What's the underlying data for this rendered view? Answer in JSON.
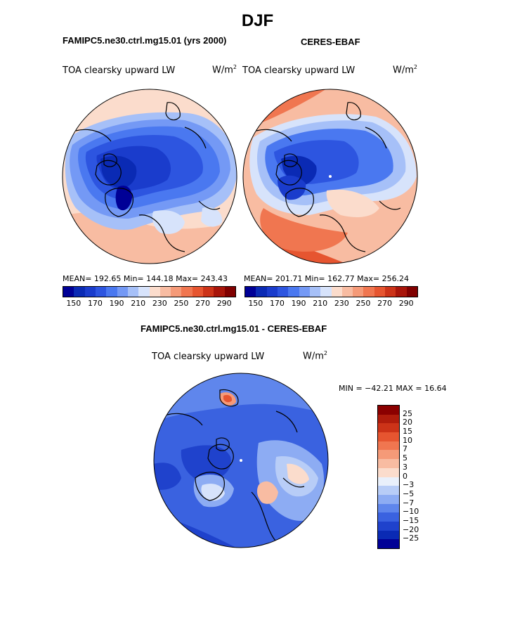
{
  "page": {
    "season_title": "DJF",
    "model_title": "FAMIPC5.ne30.ctrl.mg15.01 (yrs 2000)",
    "obs_title": "CERES-EBAF",
    "diff_title": "FAMIPC5.ne30.ctrl.mg15.01 - CERES-EBAF"
  },
  "panels": {
    "model": {
      "variable": "TOA clearsky upward LW",
      "units": "W/m",
      "units_exp": "2",
      "stats": "MEAN= 192.65   Min= 144.18   Max= 243.43",
      "colorbar_ticks": [
        "150",
        "170",
        "190",
        "210",
        "230",
        "250",
        "270",
        "290"
      ]
    },
    "obs": {
      "variable": "TOA clearsky upward LW",
      "units": "W/m",
      "units_exp": "2",
      "stats": "MEAN= 201.71   Min= 162.77   Max= 256.24",
      "colorbar_ticks": [
        "150",
        "170",
        "190",
        "210",
        "230",
        "250",
        "270",
        "290"
      ]
    },
    "diff": {
      "variable": "TOA clearsky upward LW",
      "units": "W/m",
      "units_exp": "2",
      "stats": "MIN = −42.21  MAX =   16.64",
      "colorbar_labels": [
        "25",
        "20",
        "15",
        "10",
        "7",
        "5",
        "3",
        "0",
        "−3",
        "−5",
        "−7",
        "−10",
        "−15",
        "−20",
        "−25"
      ]
    }
  },
  "colors": {
    "abs_scale": [
      "#000096",
      "#0a2ab4",
      "#1a3ccc",
      "#2d55e0",
      "#4a78f0",
      "#7499f5",
      "#a6c0f8",
      "#d7e3fb",
      "#fbdccc",
      "#f8bca2",
      "#f59a78",
      "#f07650",
      "#e65530",
      "#cc3318",
      "#a8150a",
      "#800000"
    ],
    "diff_scale": [
      "#8b0000",
      "#b01c0c",
      "#cc3318",
      "#e65530",
      "#f07650",
      "#f59a78",
      "#f8bca2",
      "#fbdccc",
      "#e9f0fb",
      "#b8cdf7",
      "#8dacf3",
      "#5f86ec",
      "#3a62e0",
      "#1f42cc",
      "#0a2ab4",
      "#000096"
    ]
  }
}
